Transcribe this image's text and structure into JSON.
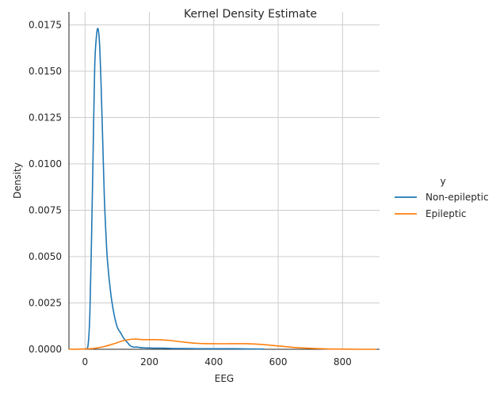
{
  "chart_data": {
    "type": "line",
    "title": "Kernel Density Estimate",
    "xlabel": "EEG",
    "ylabel": "Density",
    "xlim": [
      -50,
      915
    ],
    "ylim": [
      0,
      0.0182
    ],
    "xticks": [
      0,
      200,
      400,
      600,
      800
    ],
    "yticks": [
      0.0,
      0.0025,
      0.005,
      0.0075,
      0.01,
      0.0125,
      0.015,
      0.0175
    ],
    "ytick_labels": [
      "0.0000",
      "0.0025",
      "0.0050",
      "0.0075",
      "0.0100",
      "0.0125",
      "0.0150",
      "0.0175"
    ],
    "grid": true,
    "legend": {
      "title": "y",
      "placement": "right-outside"
    },
    "series": [
      {
        "name": "Non-epileptic",
        "color": "#1f77b4",
        "x": [
          0,
          5,
          10,
          15,
          20,
          25,
          30,
          35,
          40,
          45,
          50,
          55,
          60,
          65,
          70,
          80,
          90,
          100,
          110,
          120,
          130,
          140,
          150,
          160,
          170,
          180,
          200,
          220,
          240,
          260,
          280,
          300,
          350,
          400,
          450,
          500,
          557
        ],
        "y": [
          0.0,
          3e-05,
          0.0003,
          0.0019,
          0.0058,
          0.0105,
          0.0152,
          0.0168,
          0.0173,
          0.0165,
          0.0142,
          0.0112,
          0.0082,
          0.0062,
          0.0047,
          0.003,
          0.0019,
          0.0012,
          0.0009,
          0.0006,
          0.0004,
          0.0002,
          0.00012,
          0.00012,
          0.0001,
          8e-05,
          7e-05,
          6e-05,
          6e-05,
          5e-05,
          4e-05,
          4e-05,
          3e-05,
          3e-05,
          3e-05,
          2e-05,
          1e-05
        ]
      },
      {
        "name": "Epileptic",
        "color": "#ff7f0e",
        "x": [
          -50,
          0,
          30,
          60,
          90,
          120,
          150,
          180,
          220,
          260,
          300,
          350,
          400,
          450,
          500,
          550,
          600,
          650,
          700,
          750,
          800,
          850,
          905
        ],
        "y": [
          0.0,
          2e-05,
          5e-05,
          0.00015,
          0.0003,
          0.00047,
          0.00055,
          0.00052,
          0.00052,
          0.00048,
          0.0004,
          0.00032,
          0.0003,
          0.0003,
          0.0003,
          0.00026,
          0.00018,
          0.0001,
          5e-05,
          2e-05,
          1e-05,
          0.0,
          0.0
        ]
      }
    ]
  }
}
